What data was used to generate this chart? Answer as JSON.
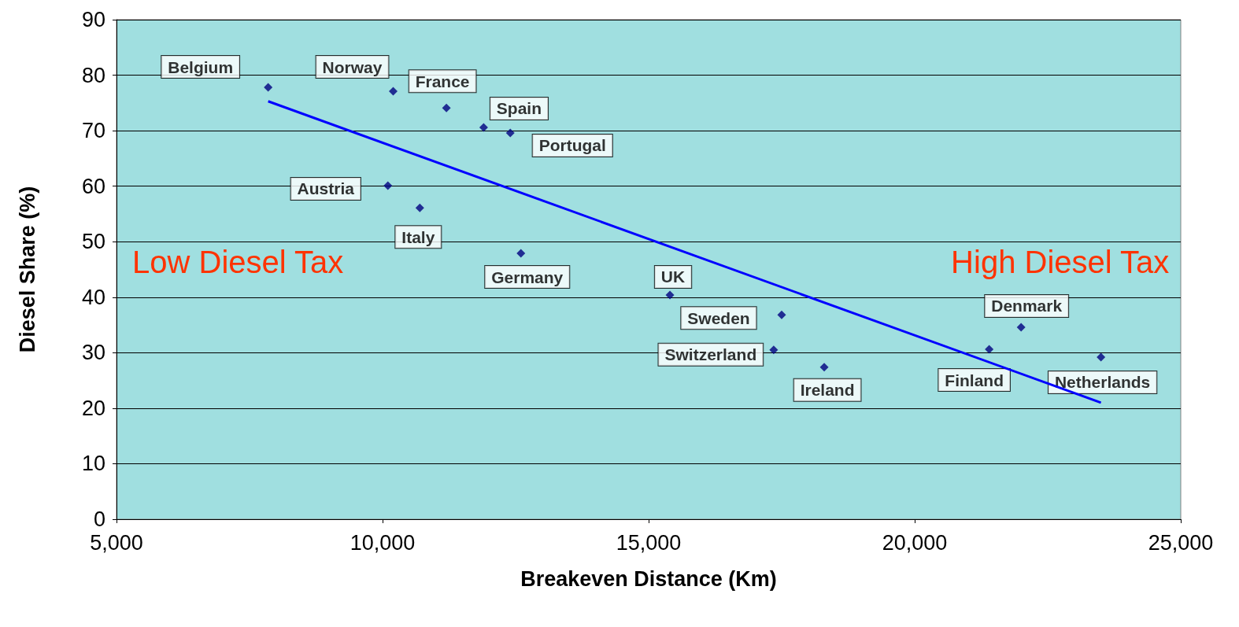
{
  "chart_data": {
    "type": "scatter",
    "xlabel": "Breakeven Distance (Km)",
    "ylabel": "Diesel Share (%)",
    "xlim": [
      5000,
      25000
    ],
    "xticks": [
      {
        "value": 5000,
        "label": "5,000"
      },
      {
        "value": 10000,
        "label": "10,000"
      },
      {
        "value": 15000,
        "label": "15,000"
      },
      {
        "value": 20000,
        "label": "20,000"
      },
      {
        "value": 25000,
        "label": "25,000"
      }
    ],
    "ylim": [
      0,
      90
    ],
    "yticks": [
      0,
      10,
      20,
      30,
      40,
      50,
      60,
      70,
      80,
      90
    ],
    "grid": "y",
    "series": [
      {
        "color": "#000080",
        "marker": "diamond",
        "x": [
          7850,
          10200,
          11200,
          11900,
          12400,
          10100,
          10700,
          12600,
          15400,
          17500,
          17350,
          18300,
          21400,
          22000,
          23500
        ],
        "values": [
          77.8,
          77.1,
          74.1,
          70.6,
          69.6,
          60.1,
          56.1,
          47.9,
          40.4,
          36.8,
          30.5,
          27.4,
          30.6,
          34.6,
          29.2
        ],
        "value_labels": [
          "Belgium",
          "Norway",
          "France",
          "Spain",
          "Portugal",
          "Austria",
          "Italy",
          "Germany",
          "UK",
          "Sweden",
          "Switzerland",
          "Ireland",
          "Finland",
          "Denmark",
          "Netherlands"
        ]
      },
      {
        "type": "line",
        "color": "#0000ff",
        "marker": "none",
        "x": [
          7850,
          23500
        ],
        "values": [
          75.3,
          21.0
        ]
      }
    ],
    "annotations": [
      "Low Diesel Tax",
      "High Diesel Tax"
    ]
  }
}
